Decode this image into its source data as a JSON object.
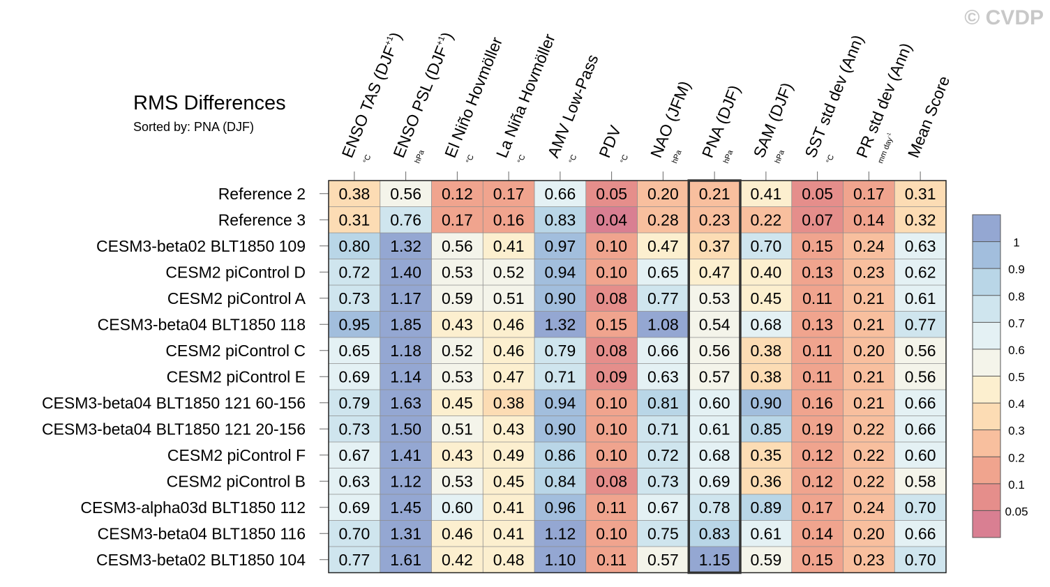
{
  "watermark": "© CVDP",
  "chart_data": {
    "type": "heatmap",
    "title": "RMS Differences",
    "subtitle": "Sorted by: PNA (DJF)",
    "highlight_column": "PNA (DJF)",
    "columns": [
      {
        "label": "ENSO TAS (DJF",
        "sup": "+1",
        "close": ")",
        "unit": "°C"
      },
      {
        "label": "ENSO PSL (DJF",
        "sup": "+1",
        "close": ")",
        "unit": "hPa"
      },
      {
        "label": "El Niño Hovmöller",
        "sup": "",
        "close": "",
        "unit": "°C"
      },
      {
        "label": "La Niña Hovmöller",
        "sup": "",
        "close": "",
        "unit": "°C"
      },
      {
        "label": "AMV Low-Pass",
        "sup": "",
        "close": "",
        "unit": "°C"
      },
      {
        "label": "PDV",
        "sup": "",
        "close": "",
        "unit": "°C"
      },
      {
        "label": "NAO (JFM)",
        "sup": "",
        "close": "",
        "unit": "hPa"
      },
      {
        "label": "PNA (DJF)",
        "sup": "",
        "close": "",
        "unit": "hPa"
      },
      {
        "label": "SAM (DJF)",
        "sup": "",
        "close": "",
        "unit": "hPa"
      },
      {
        "label": "SST std dev (Ann)",
        "sup": "",
        "close": "",
        "unit": "°C"
      },
      {
        "label": "PR std dev (Ann)",
        "sup": "",
        "close": "",
        "unit": "mm day",
        "unit_sup": "-1"
      },
      {
        "label": "Mean Score",
        "sup": "",
        "close": "",
        "unit": ""
      }
    ],
    "rows": [
      "Reference 2",
      "Reference 3",
      "CESM3-beta02 BLT1850 109",
      "CESM2 piControl D",
      "CESM2 piControl A",
      "CESM3-beta04 BLT1850 118",
      "CESM2 piControl C",
      "CESM2 piControl E",
      "CESM3-beta04 BLT1850 121 60-156",
      "CESM3-beta04 BLT1850 121 20-156",
      "CESM2 piControl F",
      "CESM2 piControl B",
      "CESM3-alpha03d BLT1850 112",
      "CESM3-beta04 BLT1850 116",
      "CESM3-beta02 BLT1850 104"
    ],
    "values": [
      [
        "0.38",
        "0.56",
        "0.12",
        "0.17",
        "0.66",
        "0.05",
        "0.20",
        "0.21",
        "0.41",
        "0.05",
        "0.17",
        "0.31"
      ],
      [
        "0.31",
        "0.76",
        "0.17",
        "0.16",
        "0.83",
        "0.04",
        "0.28",
        "0.23",
        "0.22",
        "0.07",
        "0.14",
        "0.32"
      ],
      [
        "0.80",
        "1.32",
        "0.56",
        "0.41",
        "0.97",
        "0.10",
        "0.47",
        "0.37",
        "0.70",
        "0.15",
        "0.24",
        "0.63"
      ],
      [
        "0.72",
        "1.40",
        "0.53",
        "0.52",
        "0.94",
        "0.10",
        "0.65",
        "0.47",
        "0.40",
        "0.13",
        "0.23",
        "0.62"
      ],
      [
        "0.73",
        "1.17",
        "0.59",
        "0.51",
        "0.90",
        "0.08",
        "0.77",
        "0.53",
        "0.45",
        "0.11",
        "0.21",
        "0.61"
      ],
      [
        "0.95",
        "1.85",
        "0.43",
        "0.46",
        "1.32",
        "0.15",
        "1.08",
        "0.54",
        "0.68",
        "0.13",
        "0.21",
        "0.77"
      ],
      [
        "0.65",
        "1.18",
        "0.52",
        "0.46",
        "0.79",
        "0.08",
        "0.66",
        "0.56",
        "0.38",
        "0.11",
        "0.20",
        "0.56"
      ],
      [
        "0.69",
        "1.14",
        "0.53",
        "0.47",
        "0.71",
        "0.09",
        "0.63",
        "0.57",
        "0.38",
        "0.11",
        "0.21",
        "0.56"
      ],
      [
        "0.79",
        "1.63",
        "0.45",
        "0.38",
        "0.94",
        "0.10",
        "0.81",
        "0.60",
        "0.90",
        "0.16",
        "0.21",
        "0.66"
      ],
      [
        "0.73",
        "1.50",
        "0.51",
        "0.43",
        "0.90",
        "0.10",
        "0.71",
        "0.61",
        "0.85",
        "0.19",
        "0.22",
        "0.66"
      ],
      [
        "0.67",
        "1.41",
        "0.43",
        "0.49",
        "0.86",
        "0.10",
        "0.72",
        "0.68",
        "0.35",
        "0.12",
        "0.22",
        "0.60"
      ],
      [
        "0.63",
        "1.12",
        "0.53",
        "0.45",
        "0.84",
        "0.08",
        "0.73",
        "0.69",
        "0.36",
        "0.12",
        "0.22",
        "0.58"
      ],
      [
        "0.69",
        "1.45",
        "0.60",
        "0.41",
        "0.96",
        "0.11",
        "0.67",
        "0.78",
        "0.89",
        "0.17",
        "0.24",
        "0.70"
      ],
      [
        "0.70",
        "1.31",
        "0.46",
        "0.41",
        "1.12",
        "0.10",
        "0.75",
        "0.83",
        "0.61",
        "0.14",
        "0.20",
        "0.66"
      ],
      [
        "0.77",
        "1.61",
        "0.42",
        "0.48",
        "1.10",
        "0.11",
        "0.57",
        "1.15",
        "0.59",
        "0.15",
        "0.23",
        "0.70"
      ]
    ],
    "colorbar": {
      "levels": [
        0.05,
        0.1,
        0.2,
        0.3,
        0.4,
        0.5,
        0.6,
        0.7,
        0.8,
        0.9,
        1
      ],
      "labels": [
        "0.05",
        "0.1",
        "0.2",
        "0.3",
        "0.4",
        "0.5",
        "0.6",
        "0.7",
        "0.8",
        "0.9",
        "1"
      ],
      "colors": [
        "#d97f92",
        "#e58e8b",
        "#f0a48e",
        "#f8bf9e",
        "#fcdcb4",
        "#fcefcf",
        "#f4f4ea",
        "#e4f1f4",
        "#cfe5ee",
        "#b9d6e7",
        "#a2bedd",
        "#94a7d2"
      ]
    }
  }
}
